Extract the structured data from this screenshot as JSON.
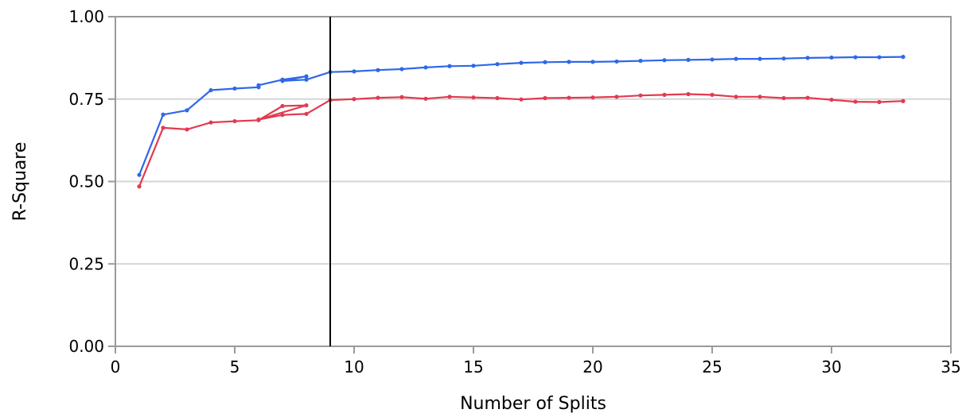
{
  "chart_data": {
    "type": "line",
    "xlabel": "Number of Splits",
    "ylabel": "R-Square",
    "xlim": [
      0,
      35
    ],
    "ylim": [
      0,
      1
    ],
    "x_ticks": [
      0,
      5,
      10,
      15,
      20,
      25,
      30,
      35
    ],
    "y_ticks": [
      0,
      0.25,
      0.5,
      0.75,
      1.0
    ],
    "x_tick_labels": [
      "0",
      "5",
      "10",
      "15",
      "20",
      "25",
      "30",
      "35"
    ],
    "y_tick_labels": [
      "0.00",
      "0.25",
      "0.50",
      "0.75",
      "1.00"
    ],
    "grid": "horizontal",
    "reference_line_x": 9,
    "series": [
      {
        "color": "#2f68e8",
        "x": [
          1,
          2,
          3,
          4,
          5,
          6,
          6,
          7,
          8,
          7,
          8,
          9,
          10,
          11,
          12,
          13,
          14,
          15,
          16,
          17,
          18,
          19,
          20,
          21,
          22,
          23,
          24,
          25,
          26,
          27,
          28,
          29,
          30,
          31,
          32,
          33
        ],
        "y": [
          0.52,
          0.703,
          0.716,
          0.777,
          0.782,
          0.786,
          0.792,
          0.809,
          0.819,
          0.805,
          0.809,
          0.832,
          0.834,
          0.838,
          0.841,
          0.846,
          0.85,
          0.851,
          0.856,
          0.86,
          0.862,
          0.863,
          0.863,
          0.864,
          0.866,
          0.868,
          0.869,
          0.87,
          0.872,
          0.872,
          0.873,
          0.875,
          0.876,
          0.877,
          0.877,
          0.878
        ]
      },
      {
        "color": "#e23a50",
        "x": [
          1,
          2,
          3,
          4,
          5,
          6,
          7,
          8,
          6,
          7,
          8,
          9,
          10,
          11,
          12,
          13,
          14,
          15,
          16,
          17,
          18,
          19,
          20,
          21,
          22,
          23,
          24,
          25,
          26,
          27,
          28,
          29,
          30,
          31,
          32,
          33
        ],
        "y": [
          0.485,
          0.663,
          0.658,
          0.679,
          0.683,
          0.686,
          0.729,
          0.731,
          0.688,
          0.702,
          0.705,
          0.747,
          0.75,
          0.754,
          0.756,
          0.751,
          0.757,
          0.755,
          0.753,
          0.749,
          0.753,
          0.754,
          0.755,
          0.757,
          0.761,
          0.763,
          0.765,
          0.763,
          0.757,
          0.757,
          0.753,
          0.754,
          0.748,
          0.742,
          0.741,
          0.744
        ]
      }
    ]
  }
}
